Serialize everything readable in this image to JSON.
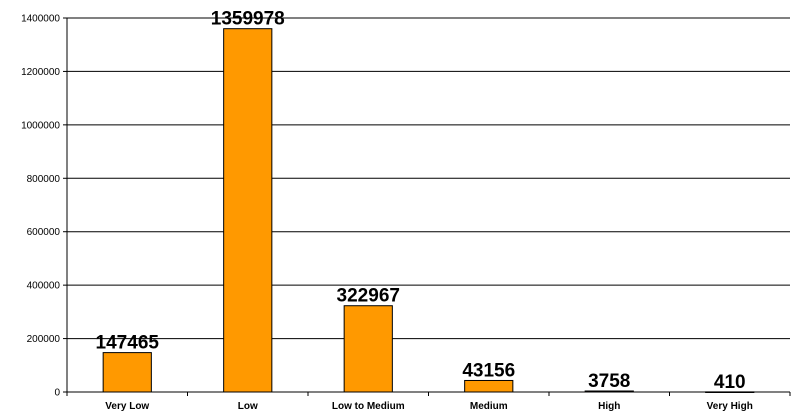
{
  "chart_data": {
    "type": "bar",
    "categories": [
      "Very Low",
      "Low",
      "Low to Medium",
      "Medium",
      "High",
      "Very High"
    ],
    "values": [
      147465,
      1359978,
      322967,
      43156,
      3758,
      410
    ],
    "data_labels": [
      "147465",
      "1359978",
      "322967",
      "43156",
      "3758",
      "410"
    ],
    "ylim": [
      0,
      1400000
    ],
    "yticks": [
      0,
      200000,
      400000,
      600000,
      800000,
      1000000,
      1200000,
      1400000
    ],
    "ytick_labels": [
      "0",
      "200000",
      "400000",
      "600000",
      "800000",
      "1000000",
      "1200000",
      "1400000"
    ],
    "grid": true,
    "legend": "none",
    "colors": {
      "bar_fill": "#ff9900",
      "bar_stroke": "#000000",
      "grid": "#000000",
      "axis": "#000000"
    }
  }
}
